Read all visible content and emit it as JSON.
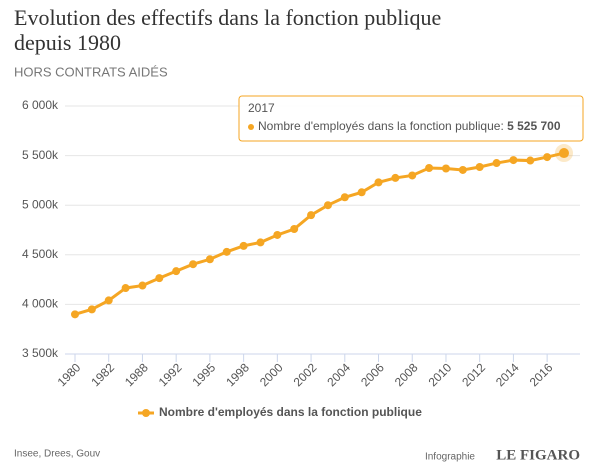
{
  "chart_data": {
    "type": "line",
    "title": [
      "Evolution des effectifs dans la fonction publique",
      "depuis 1980"
    ],
    "subtitle": "HORS CONTRATS AIDÉS",
    "categories": [
      "1980",
      null,
      "1982",
      null,
      "1988",
      null,
      "1992",
      null,
      "1995",
      null,
      "1998",
      null,
      "2000",
      null,
      "2002",
      null,
      "2004",
      null,
      "2006",
      null,
      "2008",
      null,
      "2010",
      null,
      "2012",
      null,
      "2014",
      null,
      "2016",
      null
    ],
    "series": [
      {
        "name": "Nombre d'employés dans la fonction publique",
        "color": "#f5a623",
        "values": [
          3900,
          3950,
          4040,
          4165,
          4190,
          4265,
          4335,
          4405,
          4455,
          4530,
          4590,
          4625,
          4700,
          4760,
          4900,
          5000,
          5080,
          5130,
          5230,
          5275,
          5300,
          5375,
          5370,
          5355,
          5385,
          5425,
          5455,
          5450,
          5485,
          5525.7
        ],
        "value_labels": [
          null,
          null,
          null,
          null,
          null,
          null,
          null,
          null,
          null,
          null,
          null,
          null,
          null,
          null,
          null,
          null,
          null,
          null,
          null,
          null,
          null,
          null,
          null,
          null,
          null,
          null,
          null,
          null,
          null,
          "5 525 700"
        ]
      }
    ],
    "tooltip": {
      "category": "2017",
      "label": "Nombre d'employés dans la fonction publique:"
    },
    "ylim": [
      3500,
      6000
    ],
    "yticks": [
      {
        "value": 3500,
        "label": "3 500k"
      },
      {
        "value": 4000,
        "label": "4 000k"
      },
      {
        "value": 4500,
        "label": "4 500k"
      },
      {
        "value": 5000,
        "label": "5 000k"
      },
      {
        "value": 5500,
        "label": "5 500k"
      },
      {
        "value": 6000,
        "label": "6 000k"
      }
    ],
    "grid": true,
    "legend": "bottom",
    "source": "Insee, Drees, Gouv",
    "credit": "Infographie",
    "brand": "LE FIGARO"
  }
}
